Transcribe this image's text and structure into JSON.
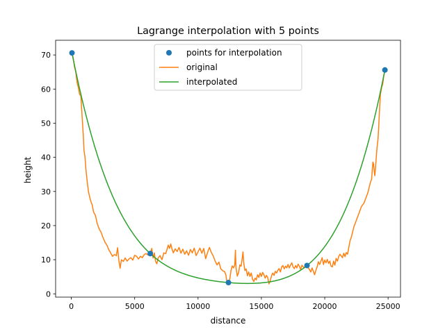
{
  "chart_data": {
    "type": "line",
    "title": "Lagrange interpolation with 5 points",
    "xlabel": "distance",
    "ylabel": "height",
    "xlim": [
      -1240,
      25980
    ],
    "ylim": [
      -0.96,
      74.3
    ],
    "xticks": [
      0,
      5000,
      10000,
      15000,
      20000,
      25000
    ],
    "yticks": [
      0,
      10,
      20,
      30,
      40,
      50,
      60,
      70
    ],
    "grid": false,
    "legend": {
      "placement": "top-center"
    },
    "series": [
      {
        "name": "points for interpolation",
        "kind": "scatter",
        "color": "#1f77b4",
        "points": [
          [
            50,
            70.6
          ],
          [
            6230,
            11.8
          ],
          [
            12400,
            3.3
          ],
          [
            18600,
            8.3
          ],
          [
            24750,
            65.6
          ]
        ]
      },
      {
        "name": "original",
        "kind": "line",
        "color": "#ff7f0e",
        "points": [
          [
            50,
            70.6
          ],
          [
            150,
            69
          ],
          [
            250,
            66.5
          ],
          [
            350,
            65
          ],
          [
            450,
            62
          ],
          [
            550,
            60.5
          ],
          [
            650,
            58.5
          ],
          [
            750,
            58
          ],
          [
            850,
            52
          ],
          [
            950,
            46
          ],
          [
            1000,
            42
          ],
          [
            1080,
            40
          ],
          [
            1150,
            36.5
          ],
          [
            1250,
            33
          ],
          [
            1350,
            30
          ],
          [
            1450,
            28.3
          ],
          [
            1550,
            27
          ],
          [
            1650,
            26
          ],
          [
            1750,
            24
          ],
          [
            1900,
            23
          ],
          [
            2050,
            20.5
          ],
          [
            2200,
            19
          ],
          [
            2350,
            18
          ],
          [
            2500,
            16.5
          ],
          [
            2650,
            15.2
          ],
          [
            2800,
            14.3
          ],
          [
            2950,
            13
          ],
          [
            3100,
            12
          ],
          [
            3250,
            11
          ],
          [
            3400,
            11.5
          ],
          [
            3550,
            11.2
          ],
          [
            3650,
            13.5
          ],
          [
            3750,
            9.8
          ],
          [
            3850,
            7.5
          ],
          [
            3950,
            10
          ],
          [
            4100,
            9.5
          ],
          [
            4250,
            10.5
          ],
          [
            4400,
            9.6
          ],
          [
            4550,
            10.2
          ],
          [
            4700,
            10.6
          ],
          [
            4850,
            9.9
          ],
          [
            5000,
            11.3
          ],
          [
            5150,
            11
          ],
          [
            5300,
            10.2
          ],
          [
            5450,
            11
          ],
          [
            5600,
            10.6
          ],
          [
            5750,
            11.5
          ],
          [
            5900,
            11.8
          ],
          [
            6050,
            11.4
          ],
          [
            6230,
            11.8
          ],
          [
            6350,
            13.3
          ],
          [
            6450,
            10.5
          ],
          [
            6550,
            12
          ],
          [
            6650,
            9.5
          ],
          [
            6750,
            8.8
          ],
          [
            6850,
            10.5
          ],
          [
            7000,
            11.2
          ],
          [
            7150,
            10
          ],
          [
            7300,
            12
          ],
          [
            7450,
            11.8
          ],
          [
            7550,
            13
          ],
          [
            7650,
            14.3
          ],
          [
            7750,
            13.3
          ],
          [
            7850,
            14.6
          ],
          [
            7950,
            13.1
          ],
          [
            8050,
            12
          ],
          [
            8200,
            13.2
          ],
          [
            8350,
            12.4
          ],
          [
            8500,
            13.6
          ],
          [
            8650,
            11.9
          ],
          [
            8800,
            13.1
          ],
          [
            8950,
            11.6
          ],
          [
            9100,
            12.6
          ],
          [
            9250,
            11.3
          ],
          [
            9400,
            13
          ],
          [
            9550,
            12
          ],
          [
            9700,
            13.4
          ],
          [
            9850,
            11.2
          ],
          [
            10000,
            12.3
          ],
          [
            10150,
            13.4
          ],
          [
            10300,
            11.9
          ],
          [
            10450,
            13.3
          ],
          [
            10600,
            10.3
          ],
          [
            10750,
            12.1
          ],
          [
            10900,
            13.6
          ],
          [
            11050,
            12.1
          ],
          [
            11200,
            11.1
          ],
          [
            11350,
            9.6
          ],
          [
            11500,
            8.5
          ],
          [
            11650,
            9.3
          ],
          [
            11800,
            7.3
          ],
          [
            11950,
            6.8
          ],
          [
            12100,
            6.5
          ],
          [
            12200,
            5.5
          ],
          [
            12300,
            2.9
          ],
          [
            12400,
            3.3
          ],
          [
            12500,
            4.2
          ],
          [
            12600,
            6.8
          ],
          [
            12700,
            8.2
          ],
          [
            12800,
            7.6
          ],
          [
            12900,
            8.5
          ],
          [
            12950,
            12.8
          ],
          [
            13000,
            7.6
          ],
          [
            13100,
            5.2
          ],
          [
            13200,
            6.2
          ],
          [
            13300,
            8.5
          ],
          [
            13400,
            8.1
          ],
          [
            13500,
            10.8
          ],
          [
            13550,
            12.3
          ],
          [
            13600,
            9.3
          ],
          [
            13700,
            6.8
          ],
          [
            13800,
            7.3
          ],
          [
            13900,
            5.3
          ],
          [
            14000,
            6.4
          ],
          [
            14100,
            5.1
          ],
          [
            14200,
            6.1
          ],
          [
            14300,
            4.3
          ],
          [
            14400,
            3.6
          ],
          [
            14500,
            4.6
          ],
          [
            14600,
            4.1
          ],
          [
            14700,
            5.6
          ],
          [
            14800,
            4.8
          ],
          [
            14900,
            6.1
          ],
          [
            15000,
            5.1
          ],
          [
            15100,
            6.3
          ],
          [
            15200,
            5.6
          ],
          [
            15300,
            4.6
          ],
          [
            15400,
            5.4
          ],
          [
            15500,
            4.8
          ],
          [
            15600,
            2.9
          ],
          [
            15700,
            3.8
          ],
          [
            15800,
            5.3
          ],
          [
            15900,
            6.1
          ],
          [
            16000,
            5.4
          ],
          [
            16100,
            6.6
          ],
          [
            16200,
            6.1
          ],
          [
            16300,
            6.9
          ],
          [
            16400,
            7.4
          ],
          [
            16500,
            6.4
          ],
          [
            16600,
            7.9
          ],
          [
            16700,
            8.3
          ],
          [
            16800,
            7.3
          ],
          [
            16900,
            8.1
          ],
          [
            17000,
            7.6
          ],
          [
            17100,
            8.6
          ],
          [
            17200,
            7.6
          ],
          [
            17300,
            8.4
          ],
          [
            17400,
            9.1
          ],
          [
            17500,
            7.9
          ],
          [
            17600,
            7.4
          ],
          [
            17700,
            8.3
          ],
          [
            17800,
            7.6
          ],
          [
            17900,
            8.7
          ],
          [
            18000,
            8.1
          ],
          [
            18100,
            7.1
          ],
          [
            18200,
            8.4
          ],
          [
            18300,
            7.9
          ],
          [
            18400,
            7.6
          ],
          [
            18500,
            8.6
          ],
          [
            18600,
            8.3
          ],
          [
            18700,
            7.6
          ],
          [
            18800,
            7.1
          ],
          [
            18900,
            6.4
          ],
          [
            19000,
            7.6
          ],
          [
            19100,
            6.6
          ],
          [
            19200,
            5.6
          ],
          [
            19300,
            6.9
          ],
          [
            19400,
            7.9
          ],
          [
            19500,
            9.4
          ],
          [
            19600,
            8.6
          ],
          [
            19700,
            9.6
          ],
          [
            19800,
            10.6
          ],
          [
            19900,
            8.6
          ],
          [
            20000,
            9.9
          ],
          [
            20100,
            9.1
          ],
          [
            20200,
            10.1
          ],
          [
            20300,
            8.9
          ],
          [
            20400,
            9.6
          ],
          [
            20500,
            8.1
          ],
          [
            20600,
            7.9
          ],
          [
            20700,
            9.6
          ],
          [
            20800,
            8.4
          ],
          [
            20900,
            10.4
          ],
          [
            21000,
            9.6
          ],
          [
            21100,
            10.9
          ],
          [
            21200,
            11.6
          ],
          [
            21300,
            11.1
          ],
          [
            21400,
            10.6
          ],
          [
            21500,
            11.9
          ],
          [
            21600,
            10.9
          ],
          [
            21700,
            12.1
          ],
          [
            21800,
            11.6
          ],
          [
            21900,
            13.6
          ],
          [
            22000,
            15.6
          ],
          [
            22100,
            16.6
          ],
          [
            22200,
            18.1
          ],
          [
            22300,
            19.6
          ],
          [
            22400,
            20.6
          ],
          [
            22500,
            21.6
          ],
          [
            22600,
            22.6
          ],
          [
            22700,
            23.6
          ],
          [
            22800,
            24.6
          ],
          [
            22900,
            25.6
          ],
          [
            23000,
            26.1
          ],
          [
            23100,
            26.6
          ],
          [
            23200,
            27.6
          ],
          [
            23300,
            28.6
          ],
          [
            23400,
            29.6
          ],
          [
            23500,
            31.1
          ],
          [
            23600,
            32.6
          ],
          [
            23700,
            33.6
          ],
          [
            23800,
            38.6
          ],
          [
            23850,
            38.1
          ],
          [
            23900,
            36.1
          ],
          [
            23950,
            34.6
          ],
          [
            24000,
            36.6
          ],
          [
            24050,
            39.1
          ],
          [
            24100,
            41.6
          ],
          [
            24150,
            43.6
          ],
          [
            24200,
            45.1
          ],
          [
            24250,
            48.1
          ],
          [
            24300,
            52.1
          ],
          [
            24350,
            55.6
          ],
          [
            24400,
            58.6
          ],
          [
            24450,
            59.6
          ],
          [
            24500,
            60.6
          ],
          [
            24550,
            61.1
          ],
          [
            24600,
            62.1
          ],
          [
            24650,
            63.6
          ],
          [
            24700,
            64.6
          ],
          [
            24750,
            65.6
          ]
        ]
      },
      {
        "name": "interpolated",
        "kind": "line",
        "color": "#2ca02c",
        "interpolation_nodes": [
          [
            50,
            70.6
          ],
          [
            6230,
            11.8
          ],
          [
            12400,
            3.3
          ],
          [
            18600,
            8.3
          ],
          [
            24750,
            65.6
          ]
        ]
      }
    ]
  }
}
